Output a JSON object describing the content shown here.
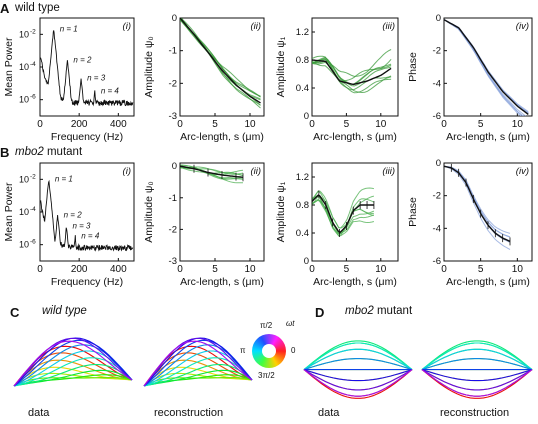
{
  "figure": {
    "row_a": {
      "letter": "A",
      "title": "wild type"
    },
    "row_b": {
      "letter": "B",
      "title_italic": "mbo2",
      "title_rest": " mutant"
    },
    "row_c": {
      "letter": "C",
      "title": "wild type",
      "left_caption": "data",
      "right_caption": "reconstruction"
    },
    "row_d": {
      "letter": "D",
      "title_italic": "mbo2",
      "title_rest": " mutant",
      "left_caption": "data",
      "right_caption": "reconstruction"
    },
    "phase_wheel": {
      "top": "π/2",
      "left": "π",
      "right": "0",
      "bottom": "3π/2",
      "arrow": "ωt"
    },
    "colors": {
      "wt_green": "#3a9a3a",
      "mean_black": "#111111",
      "trial_blue": "#8aa3db",
      "mutant_green": "#4caf50"
    }
  },
  "chart_data": [
    {
      "id": "A-i",
      "type": "line",
      "tag": "(i)",
      "xlabel": "Frequency (Hz)",
      "ylabel": "Mean Power",
      "xticks": [
        "0",
        "200",
        "400"
      ],
      "yticks": [
        "10",
        "10",
        "10"
      ],
      "ytick_exps": [
        "-2",
        "-4",
        "-6"
      ],
      "annotations": [
        "n = 1",
        "n = 2",
        "n = 3",
        "n = 4"
      ],
      "xlim": [
        0,
        480
      ],
      "ylim": [
        -7,
        -1
      ],
      "ylog": true,
      "peaks": [
        {
          "x": 70,
          "logy": -1.7
        },
        {
          "x": 140,
          "logy": -3.6
        },
        {
          "x": 210,
          "logy": -4.7
        },
        {
          "x": 280,
          "logy": -5.5
        }
      ]
    },
    {
      "id": "A-ii",
      "type": "line",
      "tag": "(ii)",
      "xlabel": "Arc-length, s (μm)",
      "ylabel": "Amplitude ψ₀",
      "xticks": [
        "0",
        "5",
        "10"
      ],
      "yticks": [
        "0",
        "-1",
        "-2",
        "-3"
      ],
      "xlim": [
        0,
        12
      ],
      "ylim": [
        -3,
        0
      ],
      "series": [
        {
          "x": [
            0,
            2,
            4,
            6,
            8,
            10,
            11.5
          ],
          "y": [
            0,
            -0.5,
            -1.05,
            -1.6,
            -2.05,
            -2.4,
            -2.6
          ]
        }
      ]
    },
    {
      "id": "A-iii",
      "type": "line",
      "tag": "(iii)",
      "xlabel": "Arc-length, s (μm)",
      "ylabel": "Amplitude ψ₁",
      "xticks": [
        "0",
        "5",
        "10"
      ],
      "yticks": [
        "1.2",
        "0.8",
        "0.4",
        "0"
      ],
      "xlim": [
        0,
        12.5
      ],
      "ylim": [
        0,
        1.4
      ],
      "series": [
        {
          "x": [
            0,
            2,
            4,
            6,
            8,
            10,
            11.5
          ],
          "y": [
            0.8,
            0.78,
            0.5,
            0.45,
            0.5,
            0.58,
            0.68
          ]
        }
      ]
    },
    {
      "id": "A-iv",
      "type": "line",
      "tag": "(iv)",
      "xlabel": "Arc-length, s (μm)",
      "ylabel": "Phase",
      "xticks": [
        "0",
        "5",
        "10"
      ],
      "yticks": [
        "0",
        "-2",
        "-4",
        "-6"
      ],
      "xlim": [
        0,
        12
      ],
      "ylim": [
        -6,
        0
      ],
      "series": [
        {
          "x": [
            0,
            2,
            4,
            6,
            8,
            10,
            11.5
          ],
          "y": [
            -0.1,
            -0.6,
            -1.8,
            -3.3,
            -4.5,
            -5.4,
            -5.9
          ]
        }
      ]
    },
    {
      "id": "B-i",
      "type": "line",
      "tag": "(i)",
      "xlabel": "Frequency (Hz)",
      "ylabel": "Mean Power",
      "xticks": [
        "0",
        "200",
        "400"
      ],
      "yticks": [
        "10",
        "10",
        "10"
      ],
      "ytick_exps": [
        "-2",
        "-4",
        "-6"
      ],
      "annotations": [
        "n = 1",
        "n = 2",
        "n = 3",
        "n = 4"
      ],
      "xlim": [
        0,
        480
      ],
      "ylim": [
        -7,
        -1
      ],
      "ylog": true,
      "peaks": [
        {
          "x": 45,
          "logy": -2.0
        },
        {
          "x": 90,
          "logy": -4.2
        },
        {
          "x": 135,
          "logy": -4.9
        },
        {
          "x": 180,
          "logy": -5.5
        }
      ]
    },
    {
      "id": "B-ii",
      "type": "line",
      "tag": "(ii)",
      "xlabel": "Arc-length, s (μm)",
      "ylabel": "Amplitude ψ₀",
      "xticks": [
        "0",
        "5",
        "10"
      ],
      "yticks": [
        "0",
        "-1",
        "-2",
        "-3"
      ],
      "xlim": [
        0,
        12
      ],
      "ylim": [
        -3,
        0.1
      ],
      "series": [
        {
          "x": [
            0,
            2,
            4,
            6,
            8,
            9
          ],
          "y": [
            0,
            -0.08,
            -0.2,
            -0.28,
            -0.33,
            -0.35
          ]
        }
      ]
    },
    {
      "id": "B-iii",
      "type": "line",
      "tag": "(iii)",
      "xlabel": "Arc-length, s (μm)",
      "ylabel": "Amplitude ψ₁",
      "xticks": [
        "0",
        "5",
        "10"
      ],
      "yticks": [
        "1.2",
        "0.8",
        "0.4",
        "0"
      ],
      "xlim": [
        0,
        12.5
      ],
      "ylim": [
        0,
        1.4
      ],
      "series": [
        {
          "x": [
            0,
            1,
            2,
            3,
            4,
            5,
            6,
            7,
            8,
            9
          ],
          "y": [
            0.85,
            0.95,
            0.8,
            0.55,
            0.4,
            0.5,
            0.72,
            0.8,
            0.8,
            0.8
          ]
        }
      ]
    },
    {
      "id": "B-iv",
      "type": "line",
      "tag": "(iv)",
      "xlabel": "Arc-length, s (μm)",
      "ylabel": "Phase",
      "xticks": [
        "0",
        "5",
        "10"
      ],
      "yticks": [
        "0",
        "-2",
        "-4",
        "-6"
      ],
      "xlim": [
        0,
        12
      ],
      "ylim": [
        -6,
        0
      ],
      "series": [
        {
          "x": [
            0,
            1,
            2,
            3,
            4,
            5,
            6,
            7,
            8,
            9
          ],
          "y": [
            -0.2,
            -0.3,
            -0.6,
            -1.2,
            -2.2,
            -3.1,
            -3.8,
            -4.3,
            -4.6,
            -4.8
          ]
        }
      ]
    }
  ]
}
